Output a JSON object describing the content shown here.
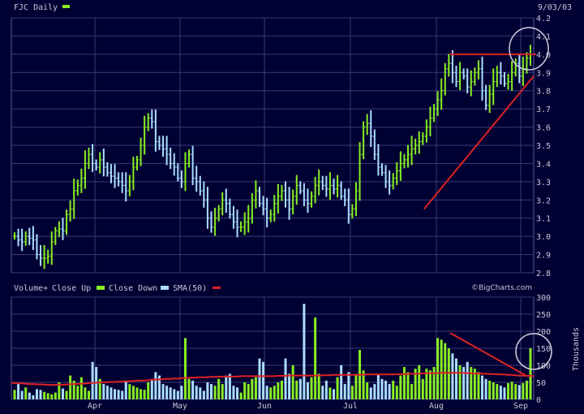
{
  "chart_data": [
    {
      "type": "ohlc",
      "title": "FJC Daily",
      "date_label": "9/03/03",
      "y_ticks": [
        "4.2",
        "4.1",
        "4.0",
        "3.9",
        "3.8",
        "3.7",
        "3.6",
        "3.5",
        "3.4",
        "3.3",
        "3.2",
        "3.1",
        "3.0",
        "2.9",
        "2.8"
      ],
      "ylim": [
        2.8,
        4.2
      ],
      "x_ticks": [
        "Apr",
        "May",
        "Jun",
        "Jul",
        "Aug",
        "Sep"
      ],
      "grid": true,
      "colors": {
        "background": "#000033",
        "grid": "#3a3a7a",
        "up": "#88ee22",
        "down": "#aaddff",
        "annotation": "#dd2222",
        "circle": "#d0d0e0",
        "text": "#c8c8d8"
      },
      "close_series": [
        3.0,
        2.98,
        2.97,
        3.0,
        2.99,
        2.98,
        2.9,
        2.88,
        2.88,
        2.89,
        2.97,
        3.03,
        3.04,
        3.03,
        3.12,
        3.15,
        3.25,
        3.28,
        3.32,
        3.4,
        3.45,
        3.4,
        3.38,
        3.42,
        3.38,
        3.35,
        3.33,
        3.32,
        3.3,
        3.28,
        3.25,
        3.3,
        3.38,
        3.42,
        3.5,
        3.6,
        3.65,
        3.63,
        3.52,
        3.5,
        3.48,
        3.45,
        3.4,
        3.38,
        3.32,
        3.3,
        3.4,
        3.45,
        3.32,
        3.3,
        3.25,
        3.2,
        3.1,
        3.05,
        3.1,
        3.15,
        3.2,
        3.18,
        3.12,
        3.08,
        3.05,
        3.05,
        3.08,
        3.1,
        3.2,
        3.25,
        3.18,
        3.15,
        3.1,
        3.12,
        3.18,
        3.22,
        3.25,
        3.2,
        3.15,
        3.22,
        3.28,
        3.25,
        3.2,
        3.18,
        3.22,
        3.28,
        3.3,
        3.28,
        3.26,
        3.28,
        3.26,
        3.28,
        3.22,
        3.2,
        3.12,
        3.15,
        3.25,
        3.45,
        3.6,
        3.62,
        3.55,
        3.45,
        3.38,
        3.35,
        3.3,
        3.28,
        3.32,
        3.36,
        3.4,
        3.42,
        3.45,
        3.48,
        3.5,
        3.52,
        3.55,
        3.6,
        3.65,
        3.7,
        3.75,
        3.8,
        3.92,
        3.95,
        3.9,
        3.85,
        3.9,
        3.88,
        3.82,
        3.85,
        3.9,
        3.92,
        3.8,
        3.72,
        3.78,
        3.85,
        3.9,
        3.88,
        3.84,
        3.85,
        3.9,
        3.95,
        3.88,
        3.92,
        3.98,
        4.0
      ],
      "annotations": {
        "resistance_level": 4.0,
        "support_trendline": [
          [
            0.79,
            3.15
          ],
          [
            1.0,
            3.88
          ]
        ]
      }
    },
    {
      "type": "bar",
      "legend": {
        "prefix": "Volume+",
        "up_label": "Close Up",
        "down_label": "Close Down",
        "sma_label": "SMA(50)"
      },
      "y_ticks": [
        "300",
        "250",
        "200",
        "150",
        "100",
        "50",
        "0"
      ],
      "ylim": [
        0,
        300
      ],
      "ylabel": "Thousands",
      "watermark": "©BigCharts.com",
      "volumes": [
        28,
        45,
        25,
        35,
        20,
        12,
        30,
        28,
        22,
        18,
        15,
        20,
        50,
        32,
        25,
        70,
        55,
        40,
        65,
        35,
        25,
        110,
        95,
        60,
        45,
        40,
        35,
        30,
        28,
        25,
        55,
        45,
        40,
        35,
        30,
        28,
        50,
        60,
        80,
        70,
        45,
        40,
        35,
        30,
        25,
        40,
        180,
        60,
        55,
        40,
        35,
        25,
        50,
        45,
        40,
        60,
        45,
        70,
        75,
        40,
        35,
        20,
        50,
        45,
        60,
        65,
        120,
        110,
        40,
        35,
        40,
        50,
        55,
        120,
        75,
        100,
        55,
        60,
        280,
        50,
        65,
        240,
        75,
        40,
        55,
        35,
        30,
        65,
        100,
        45,
        80,
        40,
        75,
        145,
        85,
        50,
        35,
        45,
        75,
        60,
        55,
        45,
        55,
        40,
        70,
        95,
        80,
        45,
        90,
        100,
        60,
        90,
        85,
        95,
        180,
        175,
        165,
        150,
        135,
        120,
        100,
        95,
        110,
        95,
        90,
        80,
        70,
        60,
        55,
        50,
        45,
        40,
        35,
        48,
        52,
        45,
        42,
        48,
        55,
        150
      ],
      "sma": [
        48,
        48,
        47,
        47,
        46,
        45,
        45,
        44,
        44,
        43,
        43,
        42,
        43,
        43,
        43,
        44,
        45,
        45,
        46,
        46,
        47,
        48,
        48,
        49,
        50,
        50,
        51,
        51,
        52,
        52,
        53,
        53,
        54,
        54,
        55,
        55,
        56,
        57,
        58,
        58,
        59,
        60,
        60,
        61,
        61,
        62,
        63,
        63,
        64,
        64,
        65,
        65,
        65,
        66,
        66,
        66,
        67,
        67,
        67,
        67,
        67,
        68,
        68,
        68,
        68,
        68,
        68,
        68,
        68,
        68,
        68,
        69,
        69,
        69,
        70,
        70,
        70,
        70,
        70,
        70,
        70,
        70,
        70,
        71,
        71,
        71,
        72,
        72,
        72,
        72,
        72,
        72,
        72,
        72,
        73,
        73,
        73,
        73,
        73,
        73,
        73,
        73,
        73,
        74,
        74,
        74,
        75,
        75,
        75,
        76,
        76,
        77,
        77,
        77,
        78,
        78,
        78,
        78,
        78,
        78,
        78,
        77,
        77,
        76,
        76,
        76,
        75,
        75,
        74,
        74,
        73,
        73,
        72,
        72,
        71,
        70,
        70,
        69,
        69,
        68
      ],
      "trendline": [
        [
          0.84,
          195
        ],
        [
          0.985,
          70
        ]
      ]
    }
  ]
}
